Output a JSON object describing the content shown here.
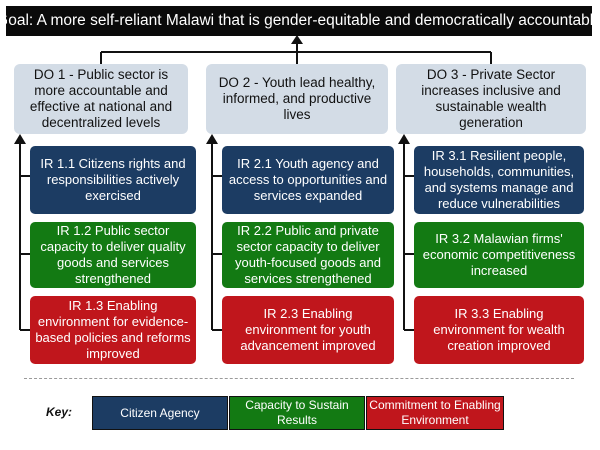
{
  "goal": "Goal: A more self-reliant Malawi that is gender-equitable and democratically accountable",
  "development_objectives": [
    {
      "label": "DO 1 - Public sector is more accountable and effective at national and decentralized levels",
      "results": [
        {
          "label": "IR 1.1 Citizens rights and responsibilities actively exercised",
          "category": "Citizen Agency"
        },
        {
          "label": "IR 1.2 Public sector capacity to deliver quality goods and services strengthened",
          "category": "Capacity to Sustain Results"
        },
        {
          "label": "IR 1.3 Enabling environment for evidence-based policies and reforms improved",
          "category": "Commitment to Enabling Environment"
        }
      ]
    },
    {
      "label": "DO 2 - Youth lead healthy, informed, and productive lives",
      "results": [
        {
          "label": "IR 2.1 Youth agency and access to opportunities and services expanded",
          "category": "Citizen Agency"
        },
        {
          "label": "IR 2.2 Public and private sector capacity to deliver youth-focused goods and services strengthened",
          "category": "Capacity to Sustain Results"
        },
        {
          "label": "IR 2.3 Enabling environment for youth advancement improved",
          "category": "Commitment to Enabling Environment"
        }
      ]
    },
    {
      "label": "DO 3 - Private Sector increases inclusive and sustainable wealth generation",
      "results": [
        {
          "label": "IR 3.1 Resilient people, households, communities, and systems manage and reduce vulnerabilities",
          "category": "Citizen Agency"
        },
        {
          "label": "IR 3.2 Malawian firms' economic competitiveness increased",
          "category": "Capacity to Sustain Results"
        },
        {
          "label": "IR 3.3 Enabling environment for wealth creation improved",
          "category": "Commitment to Enabling Environment"
        }
      ]
    }
  ],
  "key": {
    "label": "Key:",
    "items": [
      {
        "label": "Citizen Agency",
        "color": "#1c3c63"
      },
      {
        "label": "Capacity to Sustain Results",
        "color": "#137a13"
      },
      {
        "label": "Commitment to Enabling Environment",
        "color": "#c0161c"
      }
    ]
  }
}
